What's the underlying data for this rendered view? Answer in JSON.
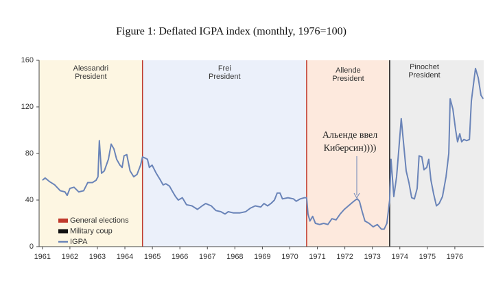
{
  "chart_data": {
    "type": "line",
    "title": "Figure 1: Deflated IGPA index (monthly, 1976=100)",
    "xlim": [
      1960.88,
      1977.05
    ],
    "ylim": [
      0,
      160
    ],
    "xticks": [
      1961,
      1962,
      1963,
      1964,
      1965,
      1966,
      1967,
      1968,
      1969,
      1970,
      1971,
      1972,
      1973,
      1974,
      1975,
      1976
    ],
    "yticks": [
      0,
      40,
      80,
      120,
      160
    ],
    "grid": false,
    "periods": [
      {
        "label": [
          "Alessandri",
          "President"
        ],
        "start": 1960.88,
        "end": 1964.64,
        "color": "#fdf6e2"
      },
      {
        "label": [
          "Frei",
          "President"
        ],
        "start": 1964.64,
        "end": 1970.61,
        "color": "#ebf0fa"
      },
      {
        "label": [
          "Allende",
          "President"
        ],
        "start": 1970.61,
        "end": 1973.63,
        "color": "#fde9dd"
      },
      {
        "label": [
          "Pinochet",
          "President"
        ],
        "start": 1973.63,
        "end": 1977.05,
        "color": "#ededed"
      }
    ],
    "legend": [
      {
        "name": "General elections",
        "color": "#c0392b"
      },
      {
        "name": "Military coup",
        "color": "#111111"
      },
      {
        "name": "IGPA",
        "color": "#6a84b8"
      }
    ],
    "events": [
      {
        "x": 1964.64,
        "kind": 0
      },
      {
        "x": 1970.61,
        "kind": 0
      },
      {
        "x": 1973.63,
        "kind": 1
      }
    ],
    "annotation": [
      "Альенде ввел",
      "Киберсин))))"
    ],
    "series": [
      {
        "name": "IGPA",
        "color": "#6a84b8",
        "x": [
          1961.0,
          1961.1,
          1961.25,
          1961.45,
          1961.65,
          1961.82,
          1961.9,
          1962.0,
          1962.15,
          1962.32,
          1962.5,
          1962.65,
          1962.82,
          1962.95,
          1963.02,
          1963.07,
          1963.15,
          1963.25,
          1963.4,
          1963.5,
          1963.6,
          1963.7,
          1963.82,
          1963.9,
          1963.97,
          1964.07,
          1964.19,
          1964.32,
          1964.44,
          1964.57,
          1964.64,
          1964.74,
          1964.82,
          1964.89,
          1964.99,
          1965.14,
          1965.27,
          1965.39,
          1965.49,
          1965.62,
          1965.74,
          1965.84,
          1965.94,
          1966.09,
          1966.24,
          1966.44,
          1966.64,
          1966.81,
          1966.94,
          1967.14,
          1967.31,
          1967.49,
          1967.64,
          1967.76,
          1967.94,
          1968.19,
          1968.39,
          1968.56,
          1968.74,
          1968.94,
          1969.06,
          1969.19,
          1969.31,
          1969.44,
          1969.54,
          1969.64,
          1969.73,
          1969.93,
          1970.13,
          1970.23,
          1970.38,
          1970.53,
          1970.61,
          1970.66,
          1970.73,
          1970.83,
          1970.93,
          1971.08,
          1971.23,
          1971.38,
          1971.53,
          1971.68,
          1971.83,
          1971.98,
          1972.13,
          1972.28,
          1972.38,
          1972.45,
          1972.53,
          1972.63,
          1972.73,
          1972.88,
          1973.03,
          1973.18,
          1973.33,
          1973.43,
          1973.53,
          1973.63,
          1973.68,
          1973.78,
          1973.88,
          1973.95,
          1974.05,
          1974.15,
          1974.23,
          1974.33,
          1974.43,
          1974.53,
          1974.63,
          1974.7,
          1974.8,
          1974.88,
          1974.98,
          1975.05,
          1975.13,
          1975.23,
          1975.33,
          1975.43,
          1975.55,
          1975.68,
          1975.78,
          1975.83,
          1975.93,
          1976.03,
          1976.1,
          1976.18,
          1976.25,
          1976.33,
          1976.43,
          1976.53,
          1976.6,
          1976.68,
          1976.75,
          1976.85,
          1976.95,
          1977.03
        ],
        "values": [
          57,
          59,
          56,
          53,
          48,
          47,
          44,
          50,
          51,
          47,
          48,
          55,
          55,
          57,
          60,
          91,
          63,
          65,
          75,
          88,
          84,
          75,
          70,
          68,
          78,
          79,
          65,
          60,
          62,
          70,
          77,
          76,
          75,
          68,
          70,
          63,
          58,
          53,
          54,
          52,
          47,
          43,
          40,
          42,
          36,
          35,
          32,
          35,
          37,
          35,
          31,
          30,
          28,
          30,
          29,
          29,
          30,
          33,
          35,
          34,
          37,
          35,
          37,
          40,
          46,
          46,
          41,
          42,
          41,
          39,
          41,
          42,
          42,
          28,
          22,
          26,
          20,
          19,
          20,
          19,
          24,
          23,
          28,
          32,
          35,
          38,
          40,
          41,
          39,
          30,
          22,
          20,
          17,
          19,
          15,
          15,
          20,
          40,
          75,
          43,
          60,
          80,
          110,
          85,
          65,
          55,
          42,
          41,
          50,
          78,
          77,
          66,
          68,
          75,
          57,
          45,
          35,
          37,
          43,
          60,
          80,
          127,
          118,
          100,
          90,
          97,
          90,
          92,
          91,
          92,
          125,
          140,
          153,
          145,
          130,
          127
        ]
      }
    ]
  }
}
